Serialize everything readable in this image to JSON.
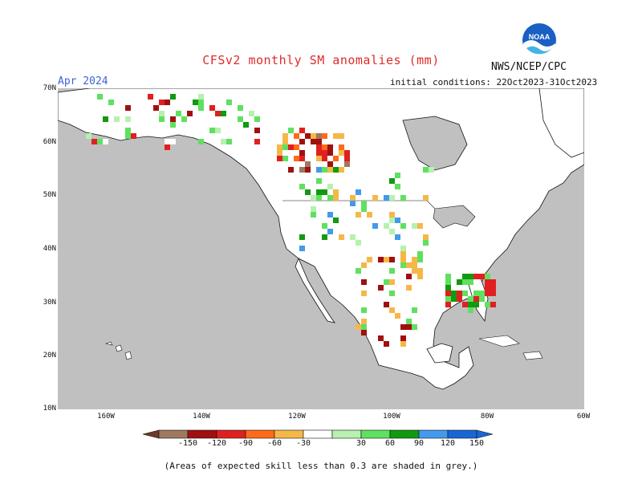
{
  "header": {
    "title": "CFSv2 monthly SM anomalies (mm)",
    "month": "Apr 2024",
    "agency": "NWS/NCEP/CPC",
    "initial_conditions": "initial conditions: 22Oct2023-31Oct2023",
    "logo_text": "NOAA"
  },
  "map": {
    "ocean_color": "#c0c0c0",
    "land_color": "#ffffff",
    "lat_labels": [
      "70N",
      "60N",
      "50N",
      "40N",
      "30N",
      "20N",
      "10N"
    ],
    "lon_labels": [
      "160W",
      "140W",
      "120W",
      "100W",
      "80W",
      "60W"
    ]
  },
  "legend": {
    "colors": [
      "#6b3a2a",
      "#a07860",
      "#a01010",
      "#e02020",
      "#ff6a1a",
      "#f5b848",
      "#ffffff",
      "#b8f0b0",
      "#60e060",
      "#109a10",
      "#4499ee",
      "#1a66d6"
    ],
    "labels": [
      "-150",
      "-120",
      "-90",
      "-60",
      "-30",
      "30",
      "60",
      "90",
      "120",
      "150"
    ],
    "footnote": "(Areas of expected skill less than 0.3 are shaded in grey.)"
  }
}
